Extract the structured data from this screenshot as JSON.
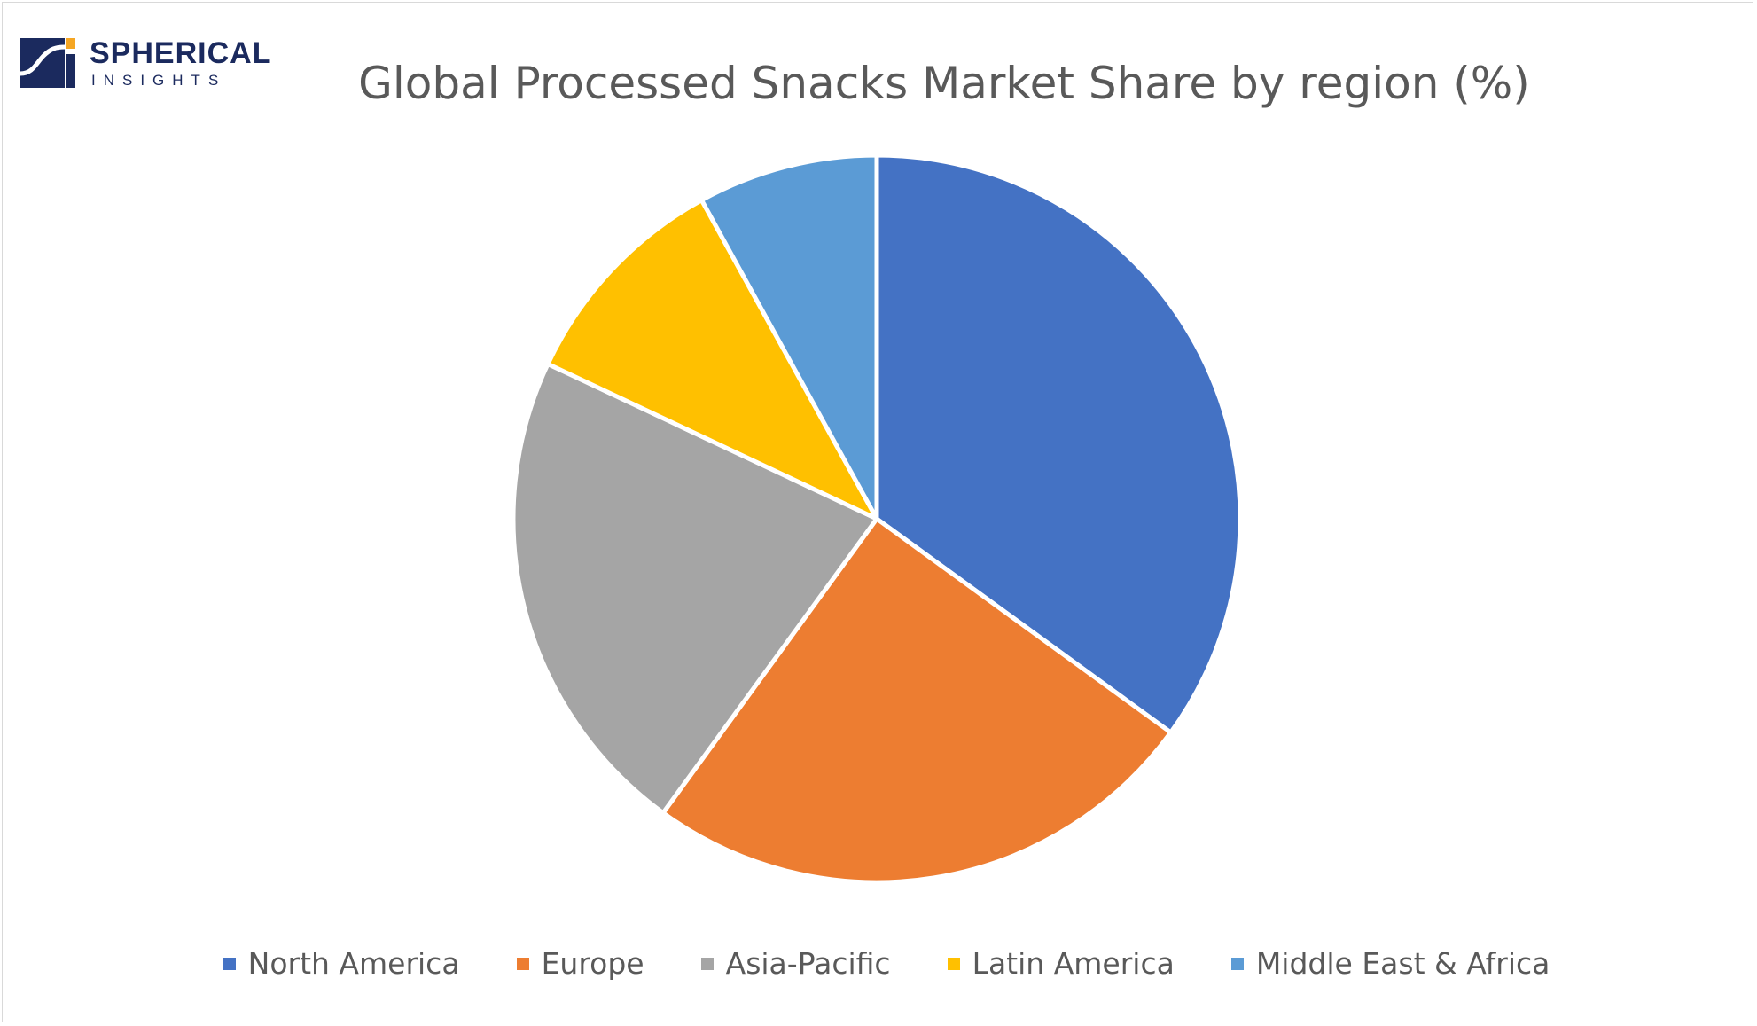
{
  "logo": {
    "line1": "SPHERICAL",
    "line2": "INSIGHTS",
    "colors": {
      "navy": "#1b2a5e",
      "orange": "#f5a623"
    }
  },
  "chart_data": {
    "type": "pie",
    "title": "Global Processed Snacks Market Share by region (%)",
    "categories": [
      "North America",
      "Europe",
      "Asia-Pacific",
      "Latin America",
      "Middle East & Africa"
    ],
    "values": [
      35,
      25,
      22,
      10,
      8
    ],
    "colors": [
      "#4472c4",
      "#ed7d31",
      "#a5a5a5",
      "#ffc000",
      "#5b9bd5"
    ],
    "legend": "bottom",
    "start_angle": "12 o'clock",
    "direction": "clockwise"
  }
}
